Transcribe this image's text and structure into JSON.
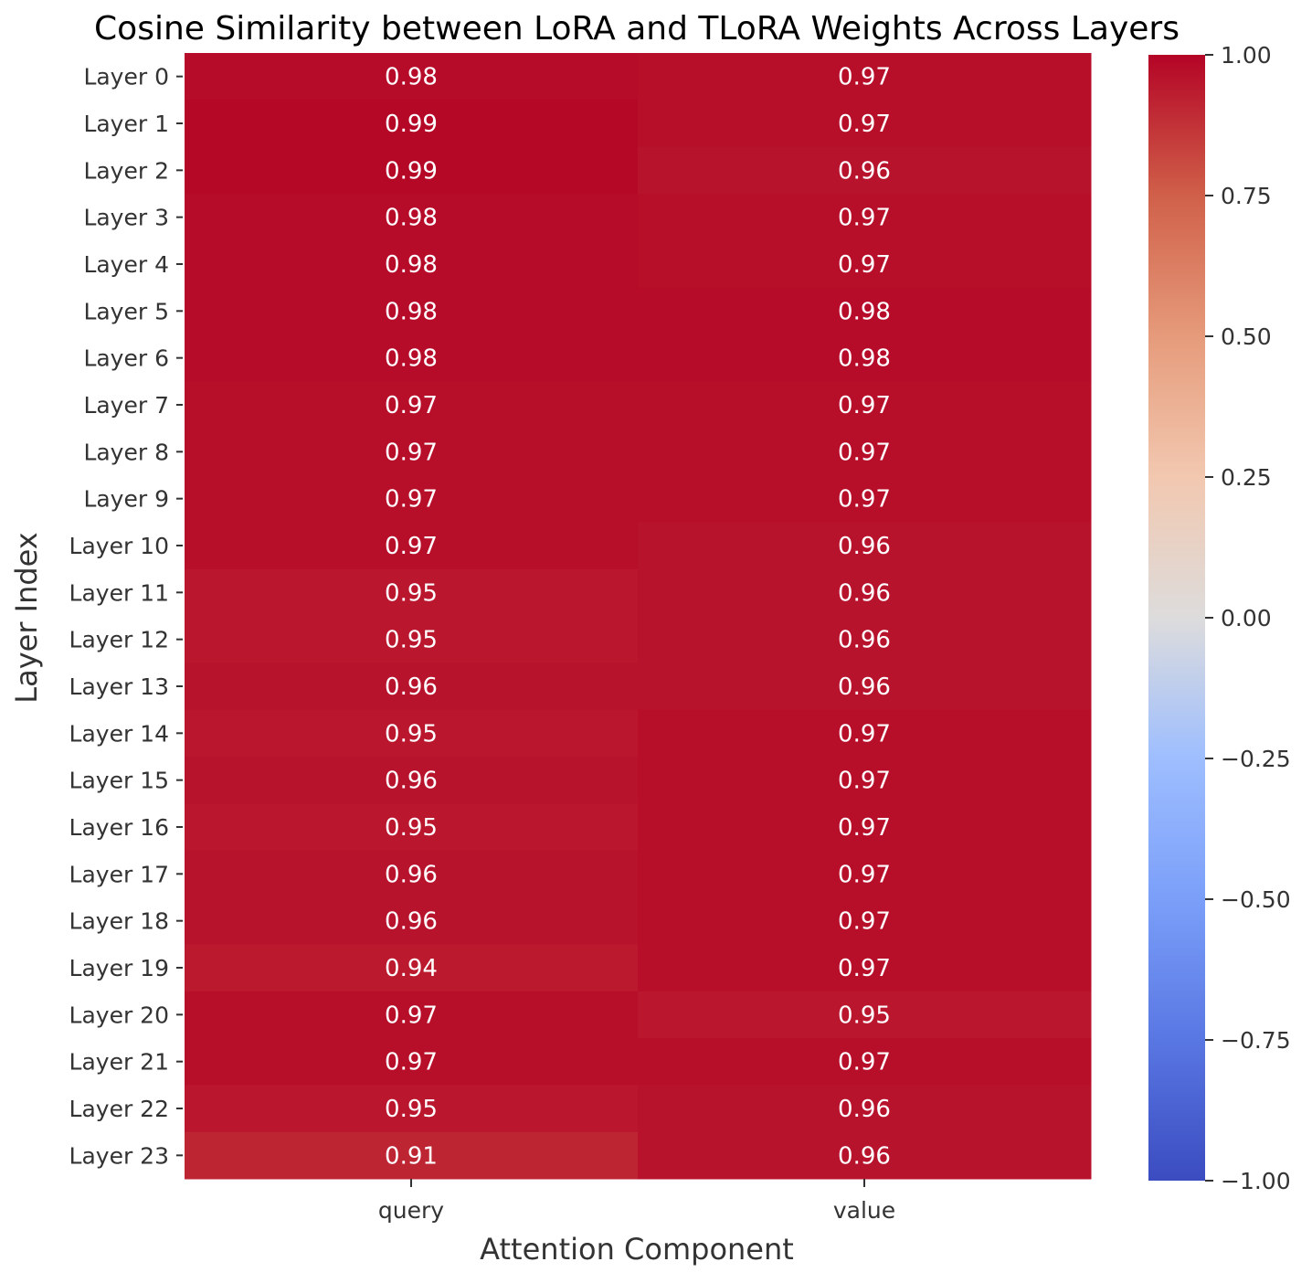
{
  "chart_data": {
    "type": "heatmap",
    "title": "Cosine Similarity between LoRA and TLoRA Weights Across Layers",
    "xlabel": "Attention Component",
    "ylabel": "Layer Index",
    "x_categories": [
      "query",
      "value"
    ],
    "y_categories": [
      "Layer 0",
      "Layer 1",
      "Layer 2",
      "Layer 3",
      "Layer 4",
      "Layer 5",
      "Layer 6",
      "Layer 7",
      "Layer 8",
      "Layer 9",
      "Layer 10",
      "Layer 11",
      "Layer 12",
      "Layer 13",
      "Layer 14",
      "Layer 15",
      "Layer 16",
      "Layer 17",
      "Layer 18",
      "Layer 19",
      "Layer 20",
      "Layer 21",
      "Layer 22",
      "Layer 23"
    ],
    "values": [
      [
        0.98,
        0.97
      ],
      [
        0.99,
        0.97
      ],
      [
        0.99,
        0.96
      ],
      [
        0.98,
        0.97
      ],
      [
        0.98,
        0.97
      ],
      [
        0.98,
        0.98
      ],
      [
        0.98,
        0.98
      ],
      [
        0.97,
        0.97
      ],
      [
        0.97,
        0.97
      ],
      [
        0.97,
        0.97
      ],
      [
        0.97,
        0.96
      ],
      [
        0.95,
        0.96
      ],
      [
        0.95,
        0.96
      ],
      [
        0.96,
        0.96
      ],
      [
        0.95,
        0.97
      ],
      [
        0.96,
        0.97
      ],
      [
        0.95,
        0.97
      ],
      [
        0.96,
        0.97
      ],
      [
        0.96,
        0.97
      ],
      [
        0.94,
        0.97
      ],
      [
        0.97,
        0.95
      ],
      [
        0.97,
        0.97
      ],
      [
        0.95,
        0.96
      ],
      [
        0.91,
        0.96
      ]
    ],
    "colorbar": {
      "colormap": "coolwarm",
      "vmin": -1.0,
      "vmax": 1.0,
      "ticks": [
        "1.00",
        "0.75",
        "0.50",
        "0.25",
        "0.00",
        "−0.25",
        "−0.50",
        "−0.75",
        "−1.00"
      ],
      "tick_values": [
        1.0,
        0.75,
        0.5,
        0.25,
        0.0,
        -0.25,
        -0.5,
        -0.75,
        -1.0
      ]
    }
  }
}
